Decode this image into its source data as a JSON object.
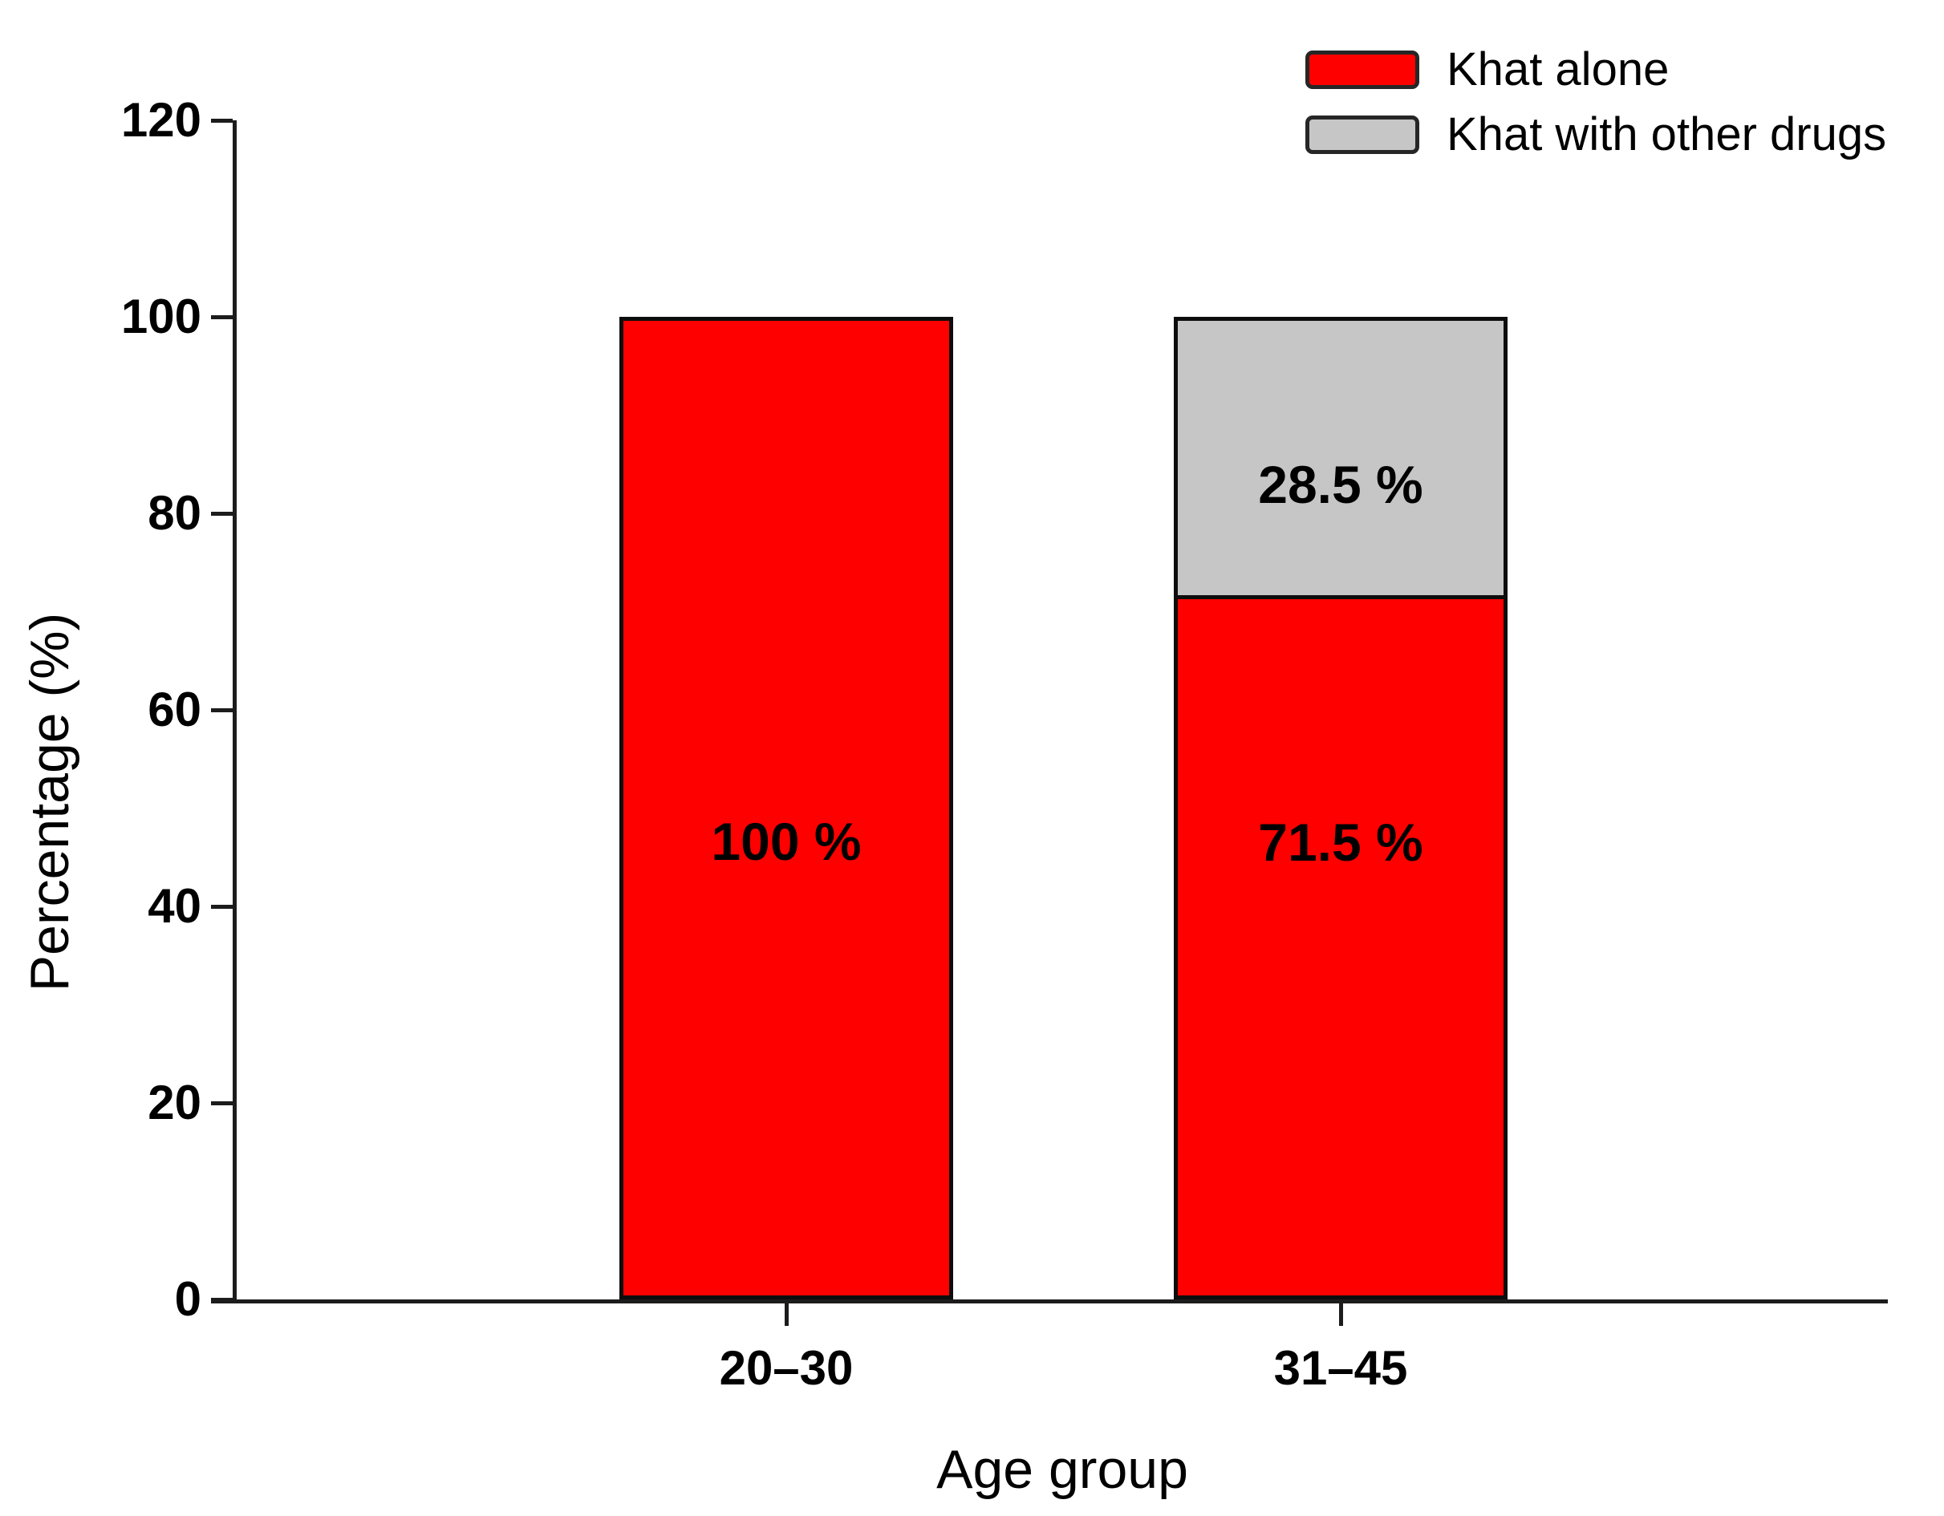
{
  "chart_data": {
    "type": "bar",
    "stacked": true,
    "xlabel": "Age group",
    "ylabel": "Percentage (%)",
    "categories": [
      "20–30",
      "31–45"
    ],
    "series": [
      {
        "name": "Khat alone",
        "color": "#ff0000",
        "values": [
          100,
          71.5
        ],
        "bar_labels": [
          "100 %",
          "71.5 %"
        ]
      },
      {
        "name": "Khat with other drugs",
        "color": "#c6c6c6",
        "values": [
          0,
          28.5
        ],
        "bar_labels": [
          "",
          "28.5 %"
        ]
      }
    ],
    "ylim": [
      0,
      120
    ],
    "yticks": [
      0,
      20,
      40,
      60,
      80,
      100,
      120
    ],
    "grid": false,
    "legend_position": "top-right"
  }
}
